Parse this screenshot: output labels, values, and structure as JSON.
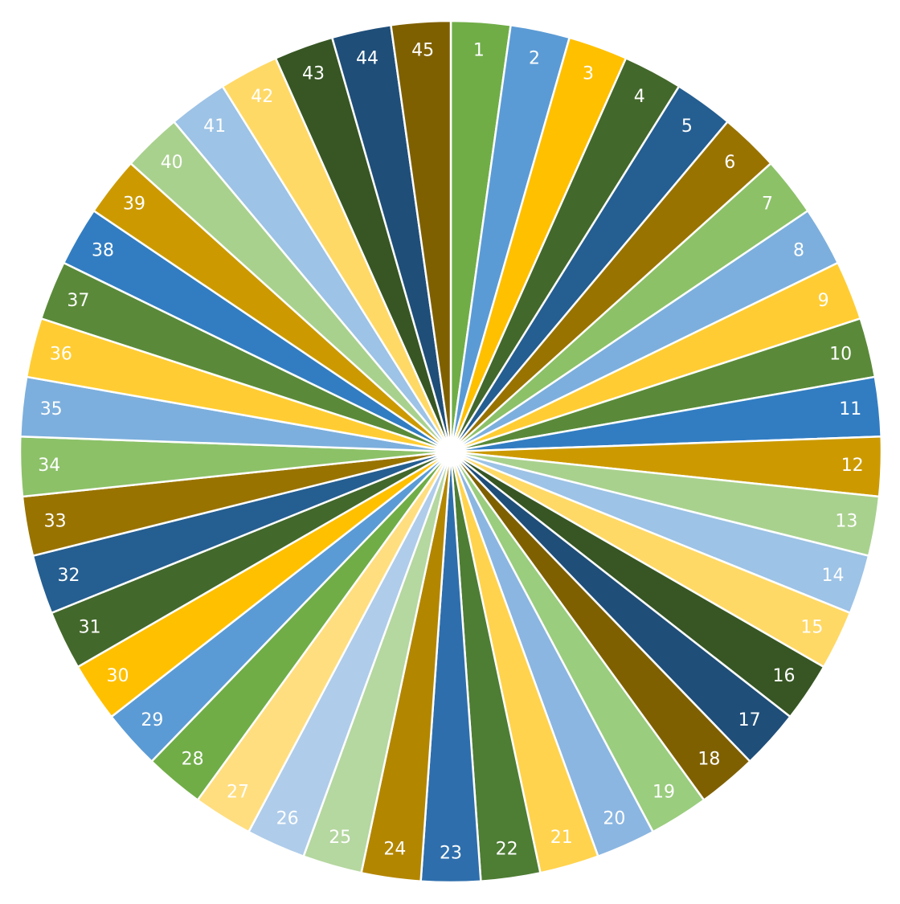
{
  "chart_data": {
    "type": "pie",
    "title": "",
    "categories": [
      "1",
      "2",
      "3",
      "4",
      "5",
      "6",
      "7",
      "8",
      "9",
      "10",
      "11",
      "12",
      "13",
      "14",
      "15",
      "16",
      "17",
      "18",
      "19",
      "20",
      "21",
      "22",
      "23",
      "24",
      "25",
      "26",
      "27",
      "28",
      "29",
      "30",
      "31",
      "32",
      "33",
      "34",
      "35",
      "36",
      "37",
      "38",
      "39",
      "40",
      "41",
      "42",
      "43",
      "44",
      "45"
    ],
    "values": [
      1,
      1,
      1,
      1,
      1,
      1,
      1,
      1,
      1,
      1,
      1,
      1,
      1,
      1,
      1,
      1,
      1,
      1,
      1,
      1,
      1,
      1,
      1,
      1,
      1,
      1,
      1,
      1,
      1,
      1,
      1,
      1,
      1,
      1,
      1,
      1,
      1,
      1,
      1,
      1,
      1,
      1,
      1,
      1,
      1
    ],
    "labels": [
      "1",
      "2",
      "3",
      "4",
      "5",
      "6",
      "7",
      "8",
      "9",
      "10",
      "11",
      "12",
      "13",
      "14",
      "15",
      "16",
      "17",
      "18",
      "19",
      "20",
      "21",
      "22",
      "23",
      "24",
      "25",
      "26",
      "27",
      "28",
      "29",
      "30",
      "31",
      "32",
      "33",
      "34",
      "35",
      "36",
      "37",
      "38",
      "39",
      "40",
      "41",
      "42",
      "43",
      "44",
      "45"
    ],
    "colors": [
      "#70AD47",
      "#5B9BD5",
      "#FFC000",
      "#43682B",
      "#255E91",
      "#997300",
      "#8CC168",
      "#7CAFDD",
      "#FFCD33",
      "#5A8A39",
      "#327DC2",
      "#CC9A00",
      "#A9D18E",
      "#9DC3E6",
      "#FFD966",
      "#375623",
      "#1F4E79",
      "#7F6000",
      "#9ACD7E",
      "#8BB6E1",
      "#FFD34D",
      "#4E7D34",
      "#2E6EAC",
      "#B38600",
      "#B5D7A0",
      "#AFCCEA",
      "#FFDE80",
      "#70AD47",
      "#5B9BD5",
      "#FFC000",
      "#43682B",
      "#255E91",
      "#997300",
      "#8CC168",
      "#7CAFDD",
      "#FFCD33",
      "#5A8A39",
      "#327DC2",
      "#CC9A00",
      "#A9D18E",
      "#9DC3E6",
      "#FFD966",
      "#375623",
      "#1F4E79",
      "#7F6000"
    ],
    "legend": "none",
    "start": "top",
    "direction": "clockwise"
  }
}
